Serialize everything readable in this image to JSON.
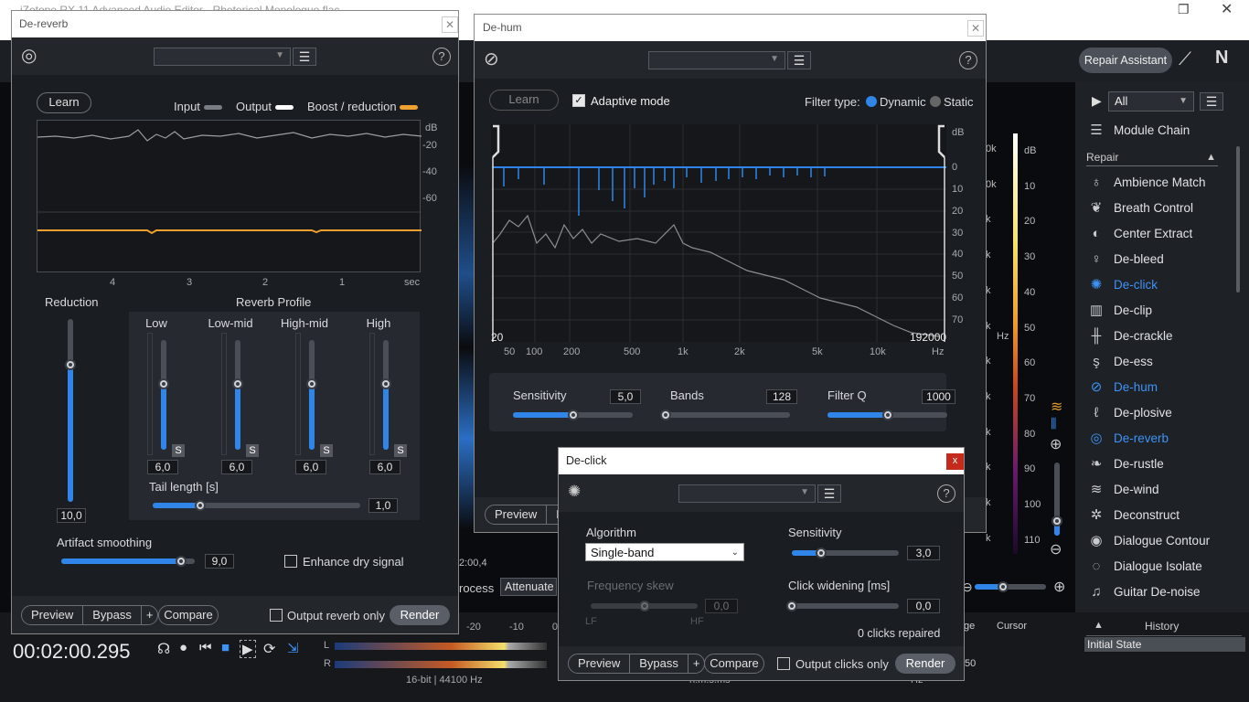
{
  "app": {
    "title": "iZotope RX 11 Advanced Audio Editor - Rhetorical Monologue.flac",
    "repair_assistant": "Repair Assistant",
    "timecode": "00:02:00.295",
    "status_format": "16-bit | 44100 Hz",
    "meter_labels": [
      "-20",
      "-10",
      "0"
    ],
    "channel_l": "L",
    "channel_r": "R",
    "mid_time": "2:00,4",
    "process_label": "rocess",
    "process_mode": "Attenuate",
    "sel_labels": {
      "range": "ge",
      "cursor": "Cursor",
      "hms": "h:m:s.ms",
      "hz": "Hz",
      "val": "50"
    },
    "spectro_db_scale": [
      "dB",
      "10",
      "20",
      "30",
      "40",
      "50",
      "60",
      "70",
      "80",
      "90",
      "100",
      "110",
      "100"
    ],
    "spectro_freq": [
      "0k",
      "0k",
      "k",
      "k",
      "k",
      "k",
      "k",
      "k",
      "k",
      "k",
      "k",
      "k",
      "Hz"
    ],
    "accent": "#2f86e8"
  },
  "module_list": {
    "filter": "All",
    "chain": "Module Chain",
    "section": "Repair",
    "items": [
      {
        "label": "Ambience Match",
        "icon": "ambience-match-icon",
        "glyph": "♁"
      },
      {
        "label": "Breath Control",
        "icon": "breath-control-icon",
        "glyph": "❦"
      },
      {
        "label": "Center Extract",
        "icon": "center-extract-icon",
        "glyph": "◐"
      },
      {
        "label": "De-bleed",
        "icon": "de-bleed-icon",
        "glyph": "♀"
      },
      {
        "label": "De-click",
        "icon": "de-click-icon",
        "glyph": "✺",
        "selected": true
      },
      {
        "label": "De-clip",
        "icon": "de-clip-icon",
        "glyph": "▥"
      },
      {
        "label": "De-crackle",
        "icon": "de-crackle-icon",
        "glyph": "╫"
      },
      {
        "label": "De-ess",
        "icon": "de-ess-icon",
        "glyph": "ş"
      },
      {
        "label": "De-hum",
        "icon": "de-hum-icon",
        "glyph": "⊘",
        "selected": true
      },
      {
        "label": "De-plosive",
        "icon": "de-plosive-icon",
        "glyph": "ℓ"
      },
      {
        "label": "De-reverb",
        "icon": "de-reverb-icon",
        "glyph": "◎",
        "selected": true
      },
      {
        "label": "De-rustle",
        "icon": "de-rustle-icon",
        "glyph": "❧"
      },
      {
        "label": "De-wind",
        "icon": "de-wind-icon",
        "glyph": "≋"
      },
      {
        "label": "Deconstruct",
        "icon": "deconstruct-icon",
        "glyph": "✲"
      },
      {
        "label": "Dialogue Contour",
        "icon": "dialogue-contour-icon",
        "glyph": "◉"
      },
      {
        "label": "Dialogue Isolate",
        "icon": "dialogue-isolate-icon",
        "glyph": "◌"
      },
      {
        "label": "Guitar De-noise",
        "icon": "guitar-de-noise-icon",
        "glyph": "♫"
      }
    ]
  },
  "history": {
    "title": "History",
    "state": "Initial State"
  },
  "dereverb": {
    "title": "De-reverb",
    "learn": "Learn",
    "legend": {
      "input": "Input",
      "output": "Output",
      "boost": "Boost / reduction"
    },
    "db_label": "dB",
    "db_ticks": [
      "-20",
      "-40",
      "-60"
    ],
    "time_ticks": [
      "4",
      "3",
      "2",
      "1",
      "sec"
    ],
    "reduction_label": "Reduction",
    "reduction_value": "10,0",
    "reduction_level": 0.75,
    "profile_label": "Reverb Profile",
    "bands": [
      {
        "label": "Low",
        "value": "6,0",
        "level": 0.6
      },
      {
        "label": "Low-mid",
        "value": "6,0",
        "level": 0.6
      },
      {
        "label": "High-mid",
        "value": "6,0",
        "level": 0.6
      },
      {
        "label": "High",
        "value": "6,0",
        "level": 0.6
      }
    ],
    "solo": "S",
    "tail_label": "Tail length [s]",
    "tail_value": "1,0",
    "tail_level": 0.23,
    "smooth_label": "Artifact smoothing",
    "smooth_value": "9,0",
    "smooth_level": 0.9,
    "enhance_label": "Enhance dry signal",
    "preview": "Preview",
    "bypass": "Bypass",
    "plus": "+",
    "compare": "Compare",
    "output_only": "Output reverb only",
    "render": "Render"
  },
  "dehum": {
    "title": "De-hum",
    "learn": "Learn",
    "adaptive": "Adaptive mode",
    "filter_type": "Filter type:",
    "dynamic": "Dynamic",
    "static": "Static",
    "db_label": "dB",
    "db_ticks": [
      "0",
      "10",
      "20",
      "30",
      "40",
      "50",
      "60",
      "70"
    ],
    "freq_ticks": [
      "50",
      "100",
      "200",
      "500",
      "1k",
      "2k",
      "5k",
      "10k",
      "Hz"
    ],
    "range_low": "20",
    "range_high": "192000",
    "sensitivity_label": "Sensitivity",
    "sensitivity_value": "5,0",
    "sensitivity_level": 0.5,
    "bands_label": "Bands",
    "bands_value": "128",
    "bands_level": 0.0,
    "q_label": "Filter Q",
    "q_value": "1000",
    "q_level": 0.5,
    "preview": "Preview",
    "bypass_short": "B"
  },
  "declick": {
    "title": "De-click",
    "algorithm_label": "Algorithm",
    "algorithm_value": "Single-band",
    "sensitivity_label": "Sensitivity",
    "sensitivity_value": "3,0",
    "sensitivity_level": 0.27,
    "freq_skew_label": "Frequency skew",
    "freq_skew_value": "0,0",
    "freq_skew_level": 0.5,
    "lf": "LF",
    "hf": "HF",
    "widening_label": "Click widening [ms]",
    "widening_value": "0,0",
    "widening_level": 0.0,
    "status": "0 clicks repaired",
    "preview": "Preview",
    "bypass": "Bypass",
    "plus": "+",
    "compare": "Compare",
    "output_only": "Output clicks only",
    "render": "Render",
    "close": "x"
  }
}
